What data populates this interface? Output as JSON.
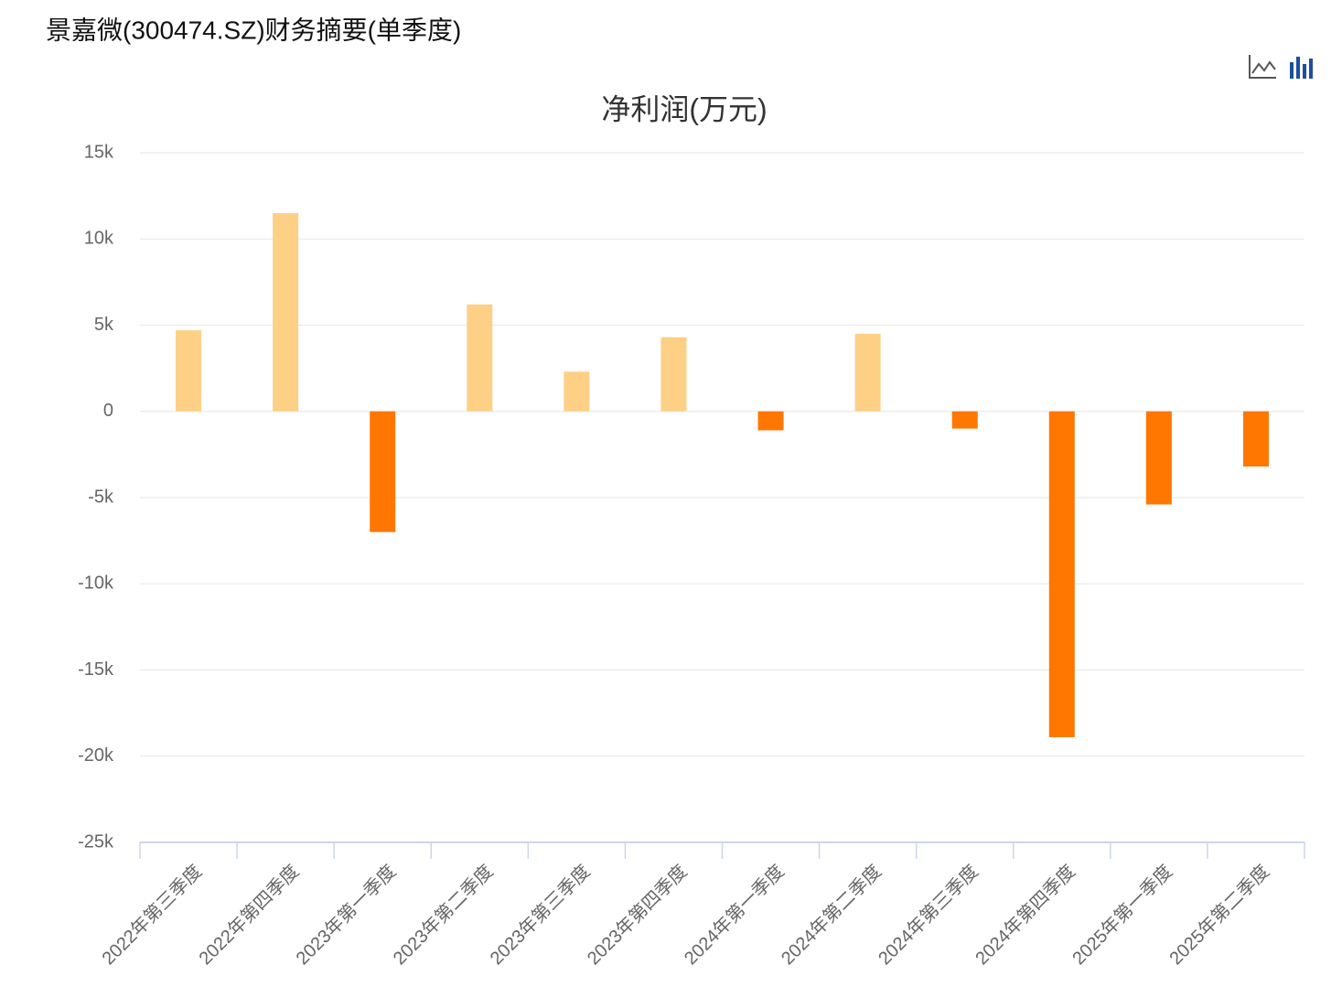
{
  "page_title": "景嘉微(300474.SZ)财务摘要(单季度)",
  "chart_data": {
    "type": "bar",
    "title": "净利润(万元)",
    "categories": [
      "2022年第三季度",
      "2022年第四季度",
      "2023年第一季度",
      "2023年第二季度",
      "2023年第三季度",
      "2023年第四季度",
      "2024年第一季度",
      "2024年第二季度",
      "2024年第三季度",
      "2024年第四季度",
      "2025年第一季度",
      "2025年第二季度"
    ],
    "values": [
      4700,
      11500,
      -7000,
      6200,
      2300,
      4300,
      -1100,
      4500,
      -1000,
      -18900,
      -5400,
      -3200
    ],
    "positive_color": "#fdd086",
    "negative_color": "#ff7700",
    "ylim": [
      -25000,
      15000
    ],
    "yticks": [
      {
        "value": -25000,
        "label": "-25k"
      },
      {
        "value": -20000,
        "label": "-20k"
      },
      {
        "value": -15000,
        "label": "-15k"
      },
      {
        "value": -10000,
        "label": "-10k"
      },
      {
        "value": -5000,
        "label": "-5k"
      },
      0,
      {
        "value": 5000,
        "label": "5k"
      },
      {
        "value": 10000,
        "label": "10k"
      },
      {
        "value": 15000,
        "label": "15k"
      }
    ],
    "grid": true
  }
}
